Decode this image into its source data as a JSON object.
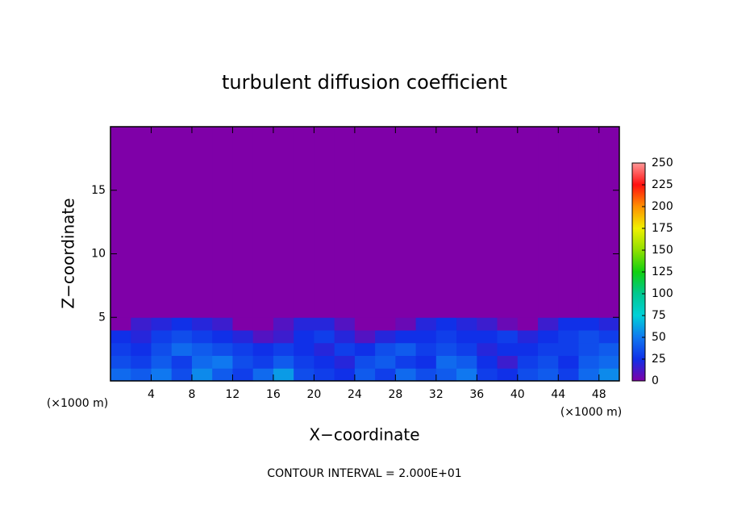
{
  "chart_data": {
    "type": "heatmap",
    "title": "turbulent diffusion coefficient",
    "xlabel": "X−coordinate",
    "ylabel": "Z−coordinate",
    "x_unit": "(×1000 m)",
    "y_unit": "(×1000 m)",
    "note": "CONTOUR INTERVAL = 2.000E+01",
    "xlim": [
      0,
      50
    ],
    "ylim": [
      0,
      20
    ],
    "xticks": [
      4,
      8,
      12,
      16,
      20,
      24,
      28,
      32,
      36,
      40,
      44,
      48
    ],
    "yticks": [
      5,
      10,
      15
    ],
    "xbins": [
      0,
      2,
      4,
      6,
      8,
      10,
      12,
      14,
      16,
      18,
      20,
      22,
      24,
      26,
      28,
      30,
      32,
      34,
      36,
      38,
      40,
      42,
      44,
      46,
      48,
      50
    ],
    "ybins": [
      0,
      1,
      2,
      3,
      4,
      5,
      20
    ],
    "z": [
      [
        45,
        40,
        50,
        35,
        55,
        40,
        30,
        45,
        60,
        35,
        30,
        25,
        40,
        30,
        45,
        35,
        40,
        50,
        30,
        25,
        35,
        40,
        30,
        45,
        55
      ],
      [
        35,
        30,
        40,
        30,
        45,
        50,
        35,
        30,
        40,
        30,
        25,
        20,
        35,
        40,
        30,
        25,
        45,
        40,
        25,
        15,
        30,
        35,
        25,
        40,
        45
      ],
      [
        30,
        25,
        35,
        45,
        40,
        35,
        30,
        25,
        30,
        25,
        20,
        30,
        25,
        35,
        40,
        30,
        35,
        30,
        20,
        25,
        25,
        30,
        30,
        35,
        40
      ],
      [
        25,
        20,
        30,
        35,
        30,
        25,
        20,
        10,
        15,
        25,
        30,
        20,
        10,
        20,
        25,
        25,
        30,
        25,
        25,
        30,
        20,
        25,
        30,
        35,
        30
      ],
      [
        0,
        15,
        20,
        25,
        20,
        15,
        0,
        0,
        10,
        20,
        20,
        10,
        0,
        0,
        5,
        20,
        25,
        20,
        15,
        5,
        0,
        15,
        25,
        25,
        20
      ],
      [
        0,
        0,
        0,
        0,
        0,
        0,
        0,
        0,
        0,
        0,
        0,
        0,
        0,
        0,
        0,
        0,
        0,
        0,
        0,
        0,
        0,
        0,
        0,
        0,
        0
      ]
    ],
    "colorbar_ticks": [
      0,
      25,
      50,
      75,
      100,
      125,
      150,
      175,
      200,
      225,
      250
    ],
    "colorbar_colors": [
      "#7f00a8",
      "#1030e8",
      "#1078f0",
      "#00d0d8",
      "#00c890",
      "#10d010",
      "#90e000",
      "#f0f000",
      "#ff9000",
      "#ff1010",
      "#ff9898"
    ]
  }
}
